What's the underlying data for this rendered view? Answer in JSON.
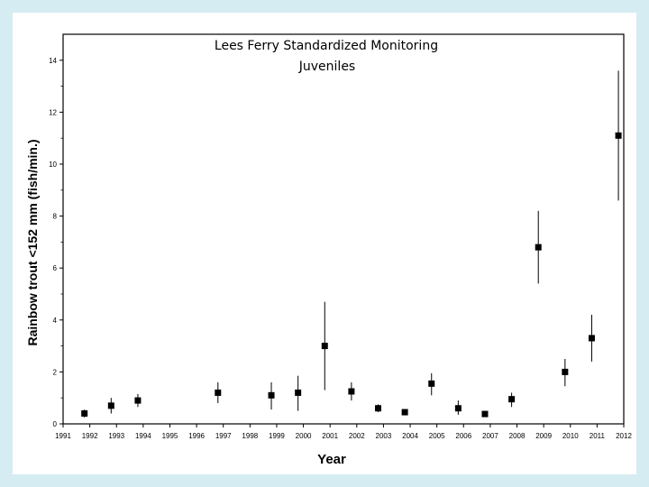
{
  "chart_data": {
    "type": "scatter",
    "title": "Lees Ferry Standardized Monitoring",
    "subtitle": "Juveniles",
    "xlabel": "Year",
    "ylabel": "Rainbow trout <152 mm (fish/min.)",
    "xlim": [
      1991,
      2012
    ],
    "ylim": [
      0,
      15
    ],
    "x_ticks": [
      "1991",
      "1992",
      "1993",
      "1994",
      "1995",
      "1996",
      "1997",
      "1998",
      "1999",
      "2000",
      "2001",
      "2002",
      "2003",
      "2004",
      "2005",
      "2006",
      "2007",
      "2008",
      "2009",
      "2010",
      "2011",
      "2012"
    ],
    "y_ticks": [
      "0",
      "2",
      "4",
      "6",
      "8",
      "10",
      "12",
      "14"
    ],
    "grid": false,
    "legend": "none",
    "points": [
      {
        "x": 1991.8,
        "y": 0.4,
        "low": 0.25,
        "high": 0.55
      },
      {
        "x": 1992.8,
        "y": 0.7,
        "low": 0.4,
        "high": 1.0
      },
      {
        "x": 1993.8,
        "y": 0.9,
        "low": 0.65,
        "high": 1.15
      },
      {
        "x": 1996.8,
        "y": 1.2,
        "low": 0.8,
        "high": 1.6
      },
      {
        "x": 1998.8,
        "y": 1.1,
        "low": 0.55,
        "high": 1.6
      },
      {
        "x": 1999.8,
        "y": 1.2,
        "low": 0.5,
        "high": 1.85
      },
      {
        "x": 2000.8,
        "y": 3.0,
        "low": 1.3,
        "high": 4.7
      },
      {
        "x": 2001.8,
        "y": 1.25,
        "low": 0.9,
        "high": 1.6
      },
      {
        "x": 2002.8,
        "y": 0.6,
        "low": 0.45,
        "high": 0.75
      },
      {
        "x": 2003.8,
        "y": 0.45,
        "low": 0.35,
        "high": 0.55
      },
      {
        "x": 2004.8,
        "y": 1.55,
        "low": 1.1,
        "high": 1.95
      },
      {
        "x": 2005.8,
        "y": 0.6,
        "low": 0.35,
        "high": 0.9
      },
      {
        "x": 2006.8,
        "y": 0.38,
        "low": 0.3,
        "high": 0.45
      },
      {
        "x": 2007.8,
        "y": 0.95,
        "low": 0.65,
        "high": 1.2
      },
      {
        "x": 2008.8,
        "y": 6.8,
        "low": 5.4,
        "high": 8.2
      },
      {
        "x": 2009.8,
        "y": 2.0,
        "low": 1.45,
        "high": 2.5
      },
      {
        "x": 2010.8,
        "y": 3.3,
        "low": 2.4,
        "high": 4.2
      },
      {
        "x": 2011.8,
        "y": 11.1,
        "low": 8.6,
        "high": 13.6
      }
    ],
    "colors": {
      "marker": "#000000",
      "errorbar": "#000000",
      "background": "#d6ecf3",
      "panel": "#ffffff"
    }
  }
}
